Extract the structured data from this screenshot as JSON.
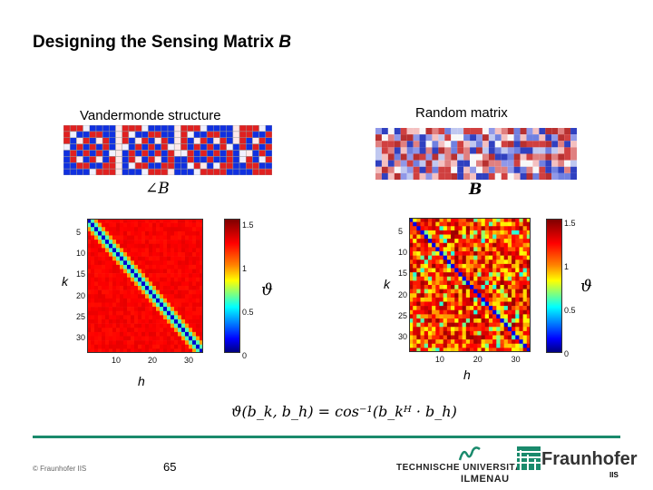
{
  "slide": {
    "title": "Designing the Sensing Matrix",
    "title_var": "B",
    "page_number": "65",
    "copyright": "© Fraunhofer IIS"
  },
  "left": {
    "heading": "Vandermonde structure",
    "matrix_label": "∠B",
    "y_label": "k",
    "x_label": "h",
    "colorbar_symbol": "ϑ",
    "y_ticks": [
      "5",
      "10",
      "15",
      "20",
      "25",
      "30"
    ],
    "x_ticks": [
      "10",
      "20",
      "30"
    ],
    "cb_ticks": [
      "1.5",
      "1",
      "0.5",
      "0"
    ]
  },
  "right": {
    "heading": "Random matrix",
    "matrix_label": "B",
    "y_label": "k",
    "x_label": "h",
    "colorbar_symbol": "ϑ",
    "y_ticks": [
      "5",
      "10",
      "15",
      "20",
      "25",
      "30"
    ],
    "x_ticks": [
      "10",
      "20",
      "30"
    ],
    "cb_ticks": [
      "1.5",
      "1",
      "0.5",
      "0"
    ]
  },
  "formula": {
    "lhs": "ϑ(b_k, b_h) = cos⁻¹(b_kᴴ · b_h)"
  },
  "logos": {
    "tu_line1": "TECHNISCHE UNIVERSITÄT",
    "tu_line2": "ILMENAU",
    "fh_name": "Fraunhofer",
    "fh_sub": "IIS"
  },
  "colors": {
    "footer_accent": "#1a8a6c",
    "fraunhofer_green": "#1a8a6c"
  }
}
